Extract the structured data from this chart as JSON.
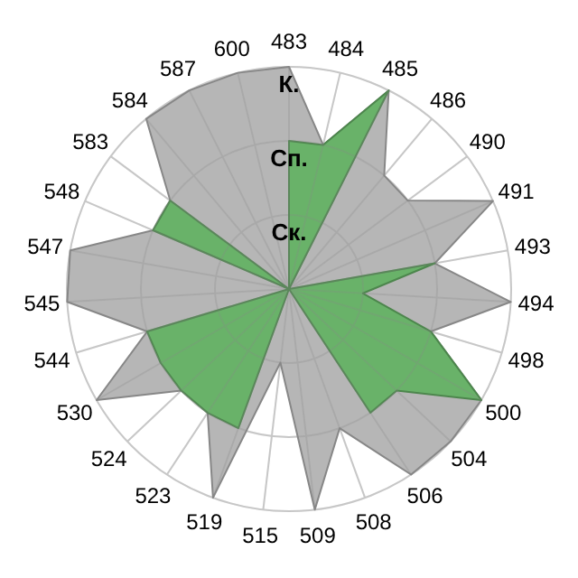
{
  "chart_data": {
    "type": "radar",
    "categories": [
      "483",
      "484",
      "485",
      "486",
      "490",
      "491",
      "493",
      "494",
      "498",
      "500",
      "504",
      "506",
      "508",
      "509",
      "515",
      "519",
      "523",
      "524",
      "530",
      "544",
      "545",
      "547",
      "548",
      "583",
      "584",
      "587",
      "600"
    ],
    "series": [
      {
        "color": "#b4b4b4",
        "values": [
          3,
          2,
          3,
          2,
          2,
          3,
          2,
          3,
          2,
          3,
          3,
          3,
          2,
          3,
          1,
          3,
          2,
          2,
          3,
          2,
          3,
          3,
          2,
          2,
          3,
          3,
          3
        ]
      },
      {
        "color": "#66b266",
        "values": [
          2,
          2,
          3,
          0,
          0,
          0,
          2,
          1,
          2,
          3,
          2,
          2,
          0,
          0,
          0,
          2,
          2,
          2,
          2,
          2,
          0,
          0,
          2,
          2,
          0,
          0,
          0
        ]
      }
    ],
    "ylim": [
      0,
      3
    ],
    "yticks": [
      {
        "value": 1,
        "label": "Ск."
      },
      {
        "value": 2,
        "label": "Сп."
      },
      {
        "value": 3,
        "label": "К."
      }
    ],
    "grid": true
  }
}
